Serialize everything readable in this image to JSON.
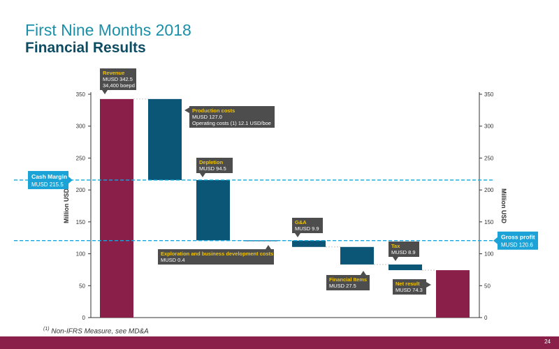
{
  "header": {
    "title_line1": "First Nine Months 2018",
    "title_line2": "Financial Results"
  },
  "footnote": {
    "marker": "(1)",
    "text": " Non-IFRS Measure, see MD&A"
  },
  "page_number": "24",
  "colors": {
    "revenue": "#8a1f49",
    "cost": "#0b5577",
    "callout": "#4d4d4d",
    "callout_title": "#f2c400",
    "cyan": "#1ba3d8",
    "bottom_bar": "#8a1f49"
  },
  "chart_data": {
    "type": "waterfall",
    "ylabel": "Million USD",
    "ylabel_right": "Million USD",
    "ylim": [
      0,
      350
    ],
    "yticks": [
      0,
      50,
      100,
      150,
      200,
      250,
      300,
      350
    ],
    "bars": [
      {
        "id": "revenue",
        "start": 0,
        "end": 342.5,
        "kind": "total",
        "label_title": "Revenue",
        "label_lines": [
          "MUSD 342.5",
          "34,400 boepd"
        ]
      },
      {
        "id": "production-costs",
        "start": 342.5,
        "end": 215.5,
        "kind": "cost",
        "label_title": "Production costs",
        "label_lines": [
          "MUSD 127.0",
          "Operating costs (1) 12.1 USD/boe"
        ]
      },
      {
        "id": "depletion",
        "start": 215.5,
        "end": 121.0,
        "kind": "cost",
        "label_title": "Depletion",
        "label_lines": [
          "MUSD 94.5"
        ]
      },
      {
        "id": "exploration",
        "start": 121.0,
        "end": 120.6,
        "kind": "cost",
        "label_title": "Exploration and business development costs",
        "label_lines": [
          "MUSD 0.4"
        ]
      },
      {
        "id": "g-and-a",
        "start": 120.6,
        "end": 110.7,
        "kind": "cost",
        "label_title": "G&A",
        "label_lines": [
          "MUSD 9.9"
        ]
      },
      {
        "id": "financial-items",
        "start": 110.7,
        "end": 83.2,
        "kind": "cost",
        "label_title": "Financial Items",
        "label_lines": [
          "MUSD 27.5"
        ]
      },
      {
        "id": "tax",
        "start": 83.2,
        "end": 74.3,
        "kind": "cost",
        "label_title": "Tax",
        "label_lines": [
          "MUSD 8.9"
        ]
      },
      {
        "id": "net-result",
        "start": 0,
        "end": 74.3,
        "kind": "total",
        "label_title": "Net result",
        "label_lines": [
          "MUSD 74.3"
        ]
      }
    ],
    "reference_lines": [
      {
        "id": "cash-margin",
        "value": 215.5,
        "title": "Cash Margin",
        "text": "MUSD 215.5",
        "side": "left"
      },
      {
        "id": "gross-profit",
        "value": 120.6,
        "title": "Gross profit",
        "text": "MUSD 120.6",
        "side": "right"
      }
    ],
    "grid": false
  }
}
